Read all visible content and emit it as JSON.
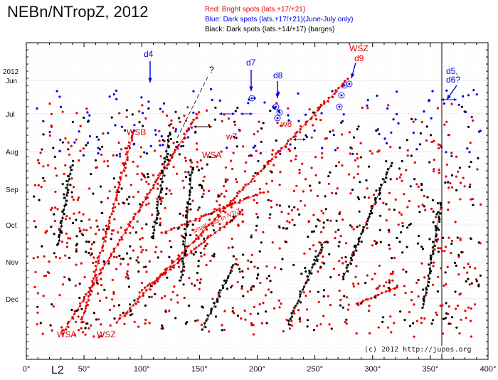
{
  "title": "NEBn/NTropZ, 2012",
  "legend": [
    {
      "label": "Red:  Bright spots (lats.+17/+21)",
      "color": "#e00000"
    },
    {
      "label": "Blue: Dark spots (lats.+17/+21)(June-July only)",
      "color": "#0000e0"
    },
    {
      "label": "Black:  Dark spots (lats.+14/+17) (barges)",
      "color": "#000000"
    }
  ],
  "credit": "(c) 2012 http://jupos.org",
  "chart_data": {
    "type": "scatter",
    "xlabel": "L2",
    "xlim": [
      0,
      400
    ],
    "x_ticks": [
      "0°",
      "50°",
      "100°",
      "150°",
      "200°",
      "250°",
      "300°",
      "350°",
      "400°"
    ],
    "y_year_label": "2012",
    "y_ticks": [
      "Jun",
      "Jul",
      "Aug",
      "Sep",
      "Oct",
      "Nov",
      "Dec"
    ],
    "series_colors": {
      "bright": "#e00000",
      "dark_blue": "#0000e0",
      "dark_black": "#000000"
    },
    "annotations": [
      {
        "text": "d4",
        "color": "#0000e0",
        "longitude": 108,
        "month": "Jun"
      },
      {
        "text": "?",
        "color": "#000000",
        "longitude": 160,
        "month": "Jun"
      },
      {
        "text": "d7",
        "color": "#0000e0",
        "longitude": 195,
        "month": "Jun"
      },
      {
        "text": "d8",
        "color": "#0000e0",
        "longitude": 218,
        "month": "Jun"
      },
      {
        "text": "WSZ",
        "color": "#e00000",
        "longitude": 286,
        "month": "May"
      },
      {
        "text": "d9",
        "color": "#e00000",
        "longitude": 288,
        "month": "Jun"
      },
      {
        "text": "d5,",
        "color": "#0000e0",
        "longitude": 380,
        "month": "Jun"
      },
      {
        "text": "d6?",
        "color": "#0000e0",
        "longitude": 380,
        "month": "Jun"
      },
      {
        "text": "WSB",
        "color": "#e00000",
        "longitude": 94,
        "month": "Jul"
      },
      {
        "text": "w7",
        "color": "#e00000",
        "longitude": 180,
        "month": "Jul"
      },
      {
        "text": "w8",
        "color": "#e00000",
        "longitude": 222,
        "month": "Jul"
      },
      {
        "text": "WSA",
        "color": "#e00000",
        "longitude": 163,
        "month": "Aug"
      },
      {
        "text": "small w.ss.in NTrZ",
        "color": "#e00000",
        "longitude": 165,
        "month": "Oct"
      },
      {
        "text": "WSA",
        "color": "#e00000",
        "longitude": 36,
        "month": "Dec"
      },
      {
        "text": "WSZ",
        "color": "#e00000",
        "longitude": 70,
        "month": "Dec"
      }
    ],
    "tracks": [
      {
        "name": "WSA-main",
        "color": "#e00000",
        "from": [
          280,
          158
        ],
        "to": [
          90,
          465
        ]
      },
      {
        "name": "WSB",
        "color": "#e00000",
        "from": [
          188,
          186
        ],
        "to": [
          115,
          452
        ]
      },
      {
        "name": "WSZ-main",
        "color": "#e00000",
        "from": [
          488,
          112
        ],
        "to": [
          165,
          452
        ]
      },
      {
        "name": "small-ws",
        "color": "#e00000",
        "from": [
          370,
          270
        ],
        "to": [
          228,
          328
        ]
      },
      {
        "name": "red-lower",
        "color": "#e00000",
        "from": [
          342,
          296
        ],
        "to": [
          198,
          410
        ]
      },
      {
        "name": "red-right",
        "color": "#e00000",
        "from": [
          556,
          404
        ],
        "to": [
          500,
          428
        ]
      },
      {
        "name": "blk-1",
        "color": "#000000",
        "from": [
          100,
          232
        ],
        "to": [
          82,
          345
        ]
      },
      {
        "name": "blk-2",
        "color": "#000000",
        "from": [
          238,
          188
        ],
        "to": [
          215,
          335
        ]
      },
      {
        "name": "blk-3",
        "color": "#000000",
        "from": [
          270,
          235
        ],
        "to": [
          255,
          395
        ]
      },
      {
        "name": "blk-4",
        "color": "#000000",
        "from": [
          330,
          370
        ],
        "to": [
          285,
          462
        ]
      },
      {
        "name": "blk-5",
        "color": "#000000",
        "from": [
          455,
          340
        ],
        "to": [
          405,
          455
        ]
      },
      {
        "name": "blk-6",
        "color": "#000000",
        "from": [
          620,
          285
        ],
        "to": [
          595,
          432
        ]
      },
      {
        "name": "blk-7",
        "color": "#000000",
        "from": [
          550,
          230
        ],
        "to": [
          482,
          392
        ]
      }
    ]
  }
}
